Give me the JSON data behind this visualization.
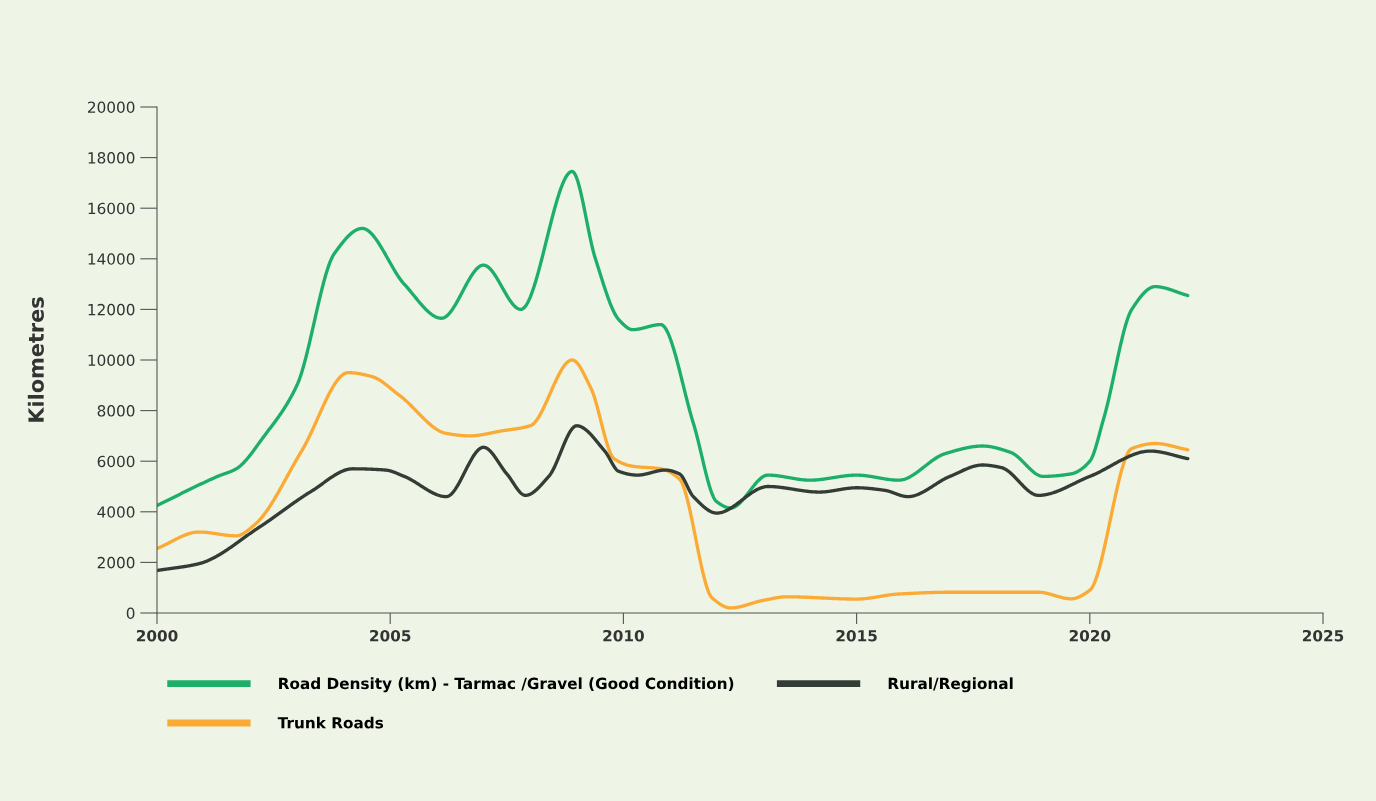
{
  "chart_data": {
    "type": "line",
    "ylabel": "Kilometres",
    "xlim": [
      2000,
      2025
    ],
    "xticks": [
      2000,
      2005,
      2010,
      2015,
      2020,
      2025
    ],
    "ylim": [
      0,
      20000
    ],
    "yticks": [
      0,
      2000,
      4000,
      6000,
      8000,
      10000,
      12000,
      14000,
      16000,
      18000,
      20000
    ],
    "grid": false,
    "legend": "bottom",
    "marker": "none",
    "line_style": "solid",
    "series": [
      {
        "name": "Road Density (km) - Tarmac /Gravel (Good Condition)",
        "color": "#1daf6a",
        "x": [
          2000,
          2001.3,
          2001.7,
          2002.3,
          2003,
          2003.8,
          2004.4,
          2005.3,
          2006.1,
          2007,
          2007.8,
          2008.9,
          2009.4,
          2009.9,
          2010.2,
          2010.8,
          2011.5,
          2012,
          2012.3,
          2013.1,
          2014,
          2015,
          2015.9,
          2016.9,
          2017.7,
          2018.3,
          2019,
          2019.6,
          2020,
          2020.3,
          2020.9,
          2021.4,
          2022.1
        ],
        "values": [
          4250,
          5400,
          5700,
          7000,
          9000,
          14200,
          15200,
          13000,
          11650,
          13750,
          12000,
          17450,
          14000,
          11600,
          11200,
          11400,
          7500,
          4400,
          4150,
          5450,
          5250,
          5450,
          5250,
          6300,
          6600,
          6350,
          5400,
          5500,
          6000,
          7700,
          12000,
          12900,
          12550
        ]
      },
      {
        "name": "Trunk Roads",
        "color": "#fbab35",
        "x": [
          2000,
          2000.9,
          2001.7,
          2002.1,
          2003.1,
          2004.1,
          2004.6,
          2005.2,
          2006.2,
          2006.7,
          2007.4,
          2008,
          2008.9,
          2009.3,
          2009.8,
          2010.2,
          2010.8,
          2011.2,
          2011.9,
          2012.3,
          2013,
          2013.5,
          2015,
          2015.9,
          2017,
          2018.9,
          2019.6,
          2020,
          2020.9,
          2021.4,
          2022.1
        ],
        "values": [
          2550,
          3200,
          3050,
          3500,
          6400,
          9500,
          9350,
          8600,
          7100,
          7000,
          7200,
          7400,
          10000,
          8900,
          6100,
          5800,
          5700,
          5300,
          600,
          200,
          500,
          640,
          550,
          750,
          820,
          820,
          560,
          900,
          6500,
          6700,
          6450
        ]
      },
      {
        "name": "Rural/Regional",
        "color": "#333d35",
        "x": [
          2000,
          2000.9,
          2002.2,
          2003.3,
          2004.2,
          2004.9,
          2005.3,
          2006.2,
          2007,
          2007.5,
          2007.9,
          2008.4,
          2009,
          2009.6,
          2009.9,
          2010.3,
          2010.9,
          2011.2,
          2011.5,
          2012,
          2013.1,
          2014.2,
          2015,
          2015.6,
          2016.1,
          2017,
          2017.7,
          2018.1,
          2018.9,
          2020,
          2021.3,
          2022.1
        ],
        "values": [
          1680,
          1950,
          3400,
          4800,
          5700,
          5650,
          5400,
          4600,
          6550,
          5500,
          4650,
          5400,
          7400,
          6400,
          5600,
          5450,
          5650,
          5500,
          4600,
          3950,
          5000,
          4780,
          4950,
          4850,
          4600,
          5400,
          5850,
          5750,
          4650,
          5400,
          6400,
          6100
        ]
      }
    ]
  }
}
